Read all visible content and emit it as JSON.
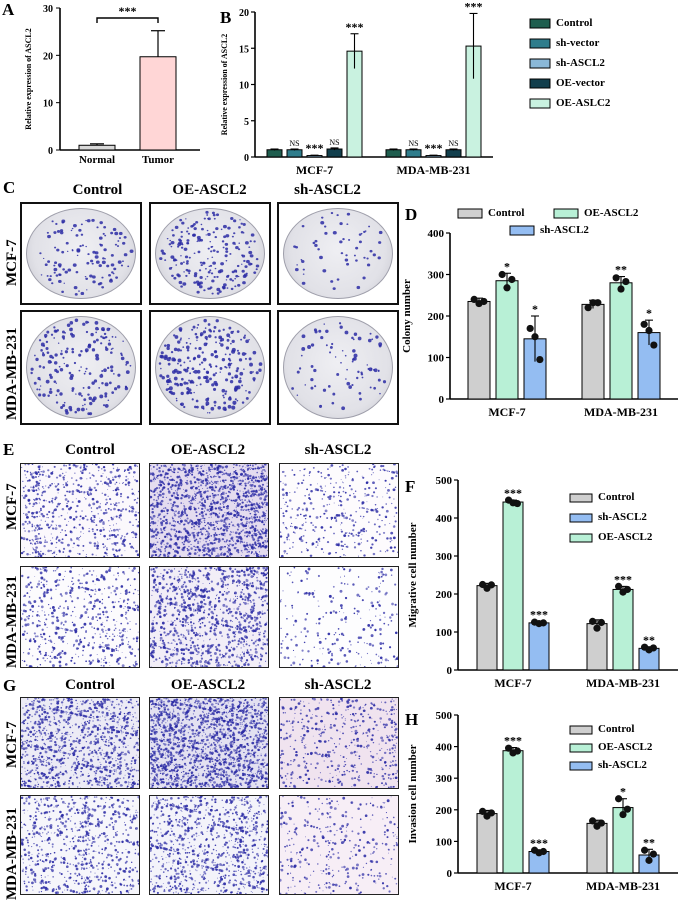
{
  "panels": {
    "A": "A",
    "B": "B",
    "C": "C",
    "D": "D",
    "E": "E",
    "F": "F",
    "G": "G",
    "H": "H"
  },
  "image_panels": {
    "C": {
      "columns": [
        "Control",
        "OE-ASCL2",
        "sh-ASCL2"
      ],
      "rows": [
        "MCF-7",
        "MDA-MB-231"
      ]
    },
    "E": {
      "columns": [
        "Control",
        "OE-ASCL2",
        "sh-ASCL2"
      ],
      "rows": [
        "MCF-7",
        "MDA-MB-231"
      ]
    },
    "G": {
      "columns": [
        "Control",
        "OE-ASCL2",
        "sh-ASCL2"
      ],
      "rows": [
        "MCF-7",
        "MDA-MB-231"
      ]
    }
  },
  "colors": {
    "normal": "#d9d9d9",
    "tumor": "#ffd6d6",
    "control_dark": "#1f5e4f",
    "sh_vector": "#2f7d8c",
    "sh_ascl2_light": "#8ab8d8",
    "oe_vector": "#123f4d",
    "oe_ascl2_mint": "#c9f2e0",
    "grey": "#cfcfcf",
    "mint": "#b8f0d6",
    "blue": "#94bdf2",
    "stain": "#2b2ba5"
  },
  "chart_data": [
    {
      "id": "A",
      "type": "bar",
      "categories": [
        "Normal",
        "Tumor"
      ],
      "values": [
        1.0,
        19.7
      ],
      "errors": [
        0.3,
        5.5
      ],
      "ylabel": "Relative expression of ASCL2",
      "ylim": [
        0,
        30
      ],
      "yticks": [
        0,
        10,
        20,
        30
      ],
      "significance": [
        {
          "text": "***",
          "between": [
            0,
            1
          ]
        }
      ]
    },
    {
      "id": "B",
      "type": "bar",
      "categories": [
        "MCF-7",
        "MDA-MB-231"
      ],
      "ylabel": "Relative expression of ASCL2",
      "ylim": [
        0,
        20
      ],
      "yticks": [
        0,
        5,
        10,
        15,
        20
      ],
      "series": [
        {
          "name": "Control",
          "values": [
            1.0,
            1.0
          ],
          "errors": [
            0.1,
            0.1
          ],
          "marks": [
            "",
            ""
          ]
        },
        {
          "name": "sh-vector",
          "values": [
            1.0,
            1.0
          ],
          "errors": [
            0.1,
            0.1
          ],
          "marks": [
            "NS",
            "NS"
          ]
        },
        {
          "name": "sh-ASCL2",
          "values": [
            0.2,
            0.2
          ],
          "errors": [
            0.05,
            0.05
          ],
          "marks": [
            "***",
            "***"
          ]
        },
        {
          "name": "OE-vector",
          "values": [
            1.1,
            1.0
          ],
          "errors": [
            0.15,
            0.1
          ],
          "marks": [
            "NS",
            "NS"
          ]
        },
        {
          "name": "OE-ASLC2",
          "values": [
            14.6,
            15.3
          ],
          "errors": [
            2.4,
            4.5
          ],
          "marks": [
            "***",
            "***"
          ]
        }
      ],
      "legend": "right"
    },
    {
      "id": "D",
      "type": "bar",
      "categories": [
        "MCF-7",
        "MDA-MB-231"
      ],
      "ylabel": "Colony number",
      "ylim": [
        0,
        400
      ],
      "yticks": [
        0,
        100,
        200,
        300,
        400
      ],
      "series": [
        {
          "name": "Control",
          "values": [
            235,
            228
          ],
          "errors": [
            8,
            10
          ],
          "marks": [
            "",
            ""
          ],
          "points": [
            [
              240,
              230,
              235
            ],
            [
              220,
              232,
              232
            ]
          ]
        },
        {
          "name": "OE-ASCL2",
          "values": [
            285,
            280
          ],
          "errors": [
            18,
            15
          ],
          "marks": [
            "*",
            "**"
          ],
          "points": [
            [
              300,
              268,
              288
            ],
            [
              292,
              265,
              283
            ]
          ]
        },
        {
          "name": "sh-ASCL2",
          "values": [
            145,
            160
          ],
          "errors": [
            55,
            30
          ],
          "marks": [
            "*",
            "*"
          ],
          "points": [
            [
              170,
              150,
              95
            ],
            [
              180,
              165,
              130
            ]
          ]
        }
      ],
      "legend": "top"
    },
    {
      "id": "F",
      "type": "bar",
      "categories": [
        "MCF-7",
        "MDA-MB-231"
      ],
      "ylabel": "Migrative cell number",
      "ylim": [
        0,
        500
      ],
      "yticks": [
        0,
        100,
        200,
        300,
        400,
        500
      ],
      "series": [
        {
          "name": "Control",
          "values": [
            222,
            122
          ],
          "errors": [
            6,
            10
          ],
          "marks": [
            "",
            ""
          ],
          "points": [
            [
              225,
              215,
              224
            ],
            [
              128,
              110,
              125
            ]
          ]
        },
        {
          "name": "OE-ASCL2",
          "values": [
            442,
            212
          ],
          "errors": [
            5,
            8
          ],
          "marks": [
            "***",
            "***"
          ],
          "points": [
            [
              447,
              440,
              438
            ],
            [
              220,
              205,
              212
            ]
          ]
        },
        {
          "name": "sh-ASCL2",
          "values": [
            124,
            57
          ],
          "errors": [
            3,
            4
          ],
          "marks": [
            "***",
            "**"
          ],
          "points": [
            [
              126,
              122,
              124
            ],
            [
              60,
              53,
              58
            ]
          ]
        }
      ],
      "legend_order": [
        "Control",
        "sh-ASCL2",
        "OE-ASCL2"
      ],
      "legend": "top-right"
    },
    {
      "id": "H",
      "type": "bar",
      "categories": [
        "MCF-7",
        "MDA-MB-231"
      ],
      "ylabel": "Invasion cell number",
      "ylim": [
        0,
        500
      ],
      "yticks": [
        0,
        100,
        200,
        300,
        400,
        500
      ],
      "series": [
        {
          "name": "Control",
          "values": [
            188,
            157
          ],
          "errors": [
            10,
            10
          ],
          "marks": [
            "",
            ""
          ],
          "points": [
            [
              195,
              180,
              190
            ],
            [
              165,
              148,
              158
            ]
          ]
        },
        {
          "name": "OE-ASCL2",
          "values": [
            387,
            207
          ],
          "errors": [
            10,
            28
          ],
          "marks": [
            "***",
            "*"
          ],
          "points": [
            [
              395,
              380,
              386
            ],
            [
              235,
              185,
              202
            ]
          ]
        },
        {
          "name": "sh-ASCL2",
          "values": [
            68,
            57
          ],
          "errors": [
            5,
            18
          ],
          "marks": [
            "***",
            "**"
          ],
          "points": [
            [
              72,
              64,
              68
            ],
            [
              72,
              40,
              60
            ]
          ]
        }
      ],
      "legend": "top-right"
    }
  ]
}
